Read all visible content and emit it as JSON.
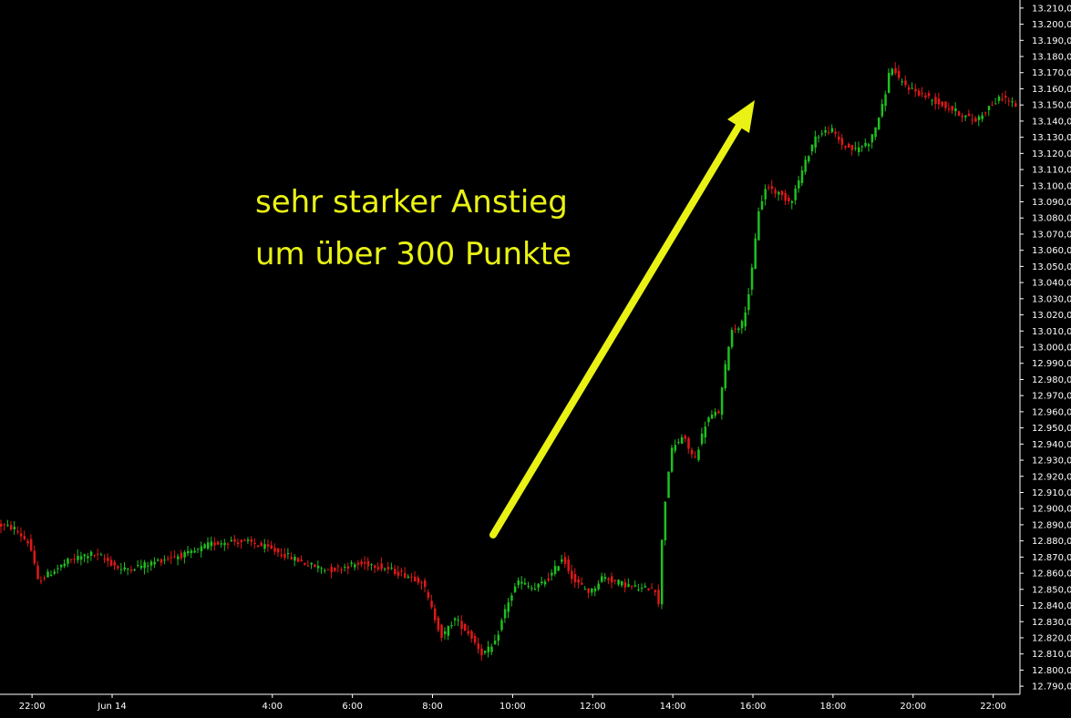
{
  "chart_data": {
    "type": "candlestick",
    "annotation": {
      "lines": [
        "sehr starker Anstieg",
        "um über 300 Punkte"
      ]
    },
    "colors": {
      "background": "#000000",
      "up": "#1fbf1f",
      "down": "#e01818",
      "axis": "#ffffff",
      "annotation": "#e9f214"
    },
    "x_axis": {
      "labels": [
        "22:00",
        "Jun 14",
        "4:00",
        "6:00",
        "8:00",
        "10:00",
        "12:00",
        "14:00",
        "16:00",
        "18:00",
        "20:00",
        "22:00"
      ],
      "hours": [
        -2,
        0,
        4,
        6,
        8,
        10,
        12,
        14,
        16,
        18,
        20,
        22
      ],
      "range_hours": [
        -2.8,
        22.6
      ]
    },
    "y_axis": {
      "ylim": [
        12785,
        13215
      ],
      "ticks": [
        "12.790,0",
        "12.800,0",
        "12.810,0",
        "12.820,0",
        "12.830,0",
        "12.840,0",
        "12.850,0",
        "12.860,0",
        "12.870,0",
        "12.880,0",
        "12.890,0",
        "12.900,0",
        "12.910,0",
        "12.920,0",
        "12.930,0",
        "12.940,0",
        "12.950,0",
        "12.960,0",
        "12.970,0",
        "12.980,0",
        "12.990,0",
        "13.000,0",
        "13.010,0",
        "13.020,0",
        "13.030,0",
        "13.040,0",
        "13.050,0",
        "13.060,0",
        "13.070,0",
        "13.080,0",
        "13.090,0",
        "13.100,0",
        "13.110,0",
        "13.120,0",
        "13.130,0",
        "13.140,0",
        "13.150,0",
        "13.160,0",
        "13.170,0",
        "13.180,0",
        "13.190,0",
        "13.200,0",
        "13.210,0"
      ],
      "tick_values": [
        12790,
        12800,
        12810,
        12820,
        12830,
        12840,
        12850,
        12860,
        12870,
        12880,
        12890,
        12900,
        12910,
        12920,
        12930,
        12940,
        12950,
        12960,
        12970,
        12980,
        12990,
        13000,
        13010,
        13020,
        13030,
        13040,
        13050,
        13060,
        13070,
        13080,
        13090,
        13100,
        13110,
        13120,
        13130,
        13140,
        13150,
        13160,
        13170,
        13180,
        13190,
        13200,
        13210
      ]
    },
    "price_path": {
      "hours": [
        -2.8,
        -2.4,
        -2.0,
        -1.8,
        -1.5,
        -1.0,
        -0.5,
        -0.2,
        0.3,
        1.0,
        1.5,
        2.0,
        2.5,
        3.0,
        3.5,
        4.0,
        4.5,
        5.0,
        5.5,
        6.0,
        6.5,
        7.0,
        7.5,
        7.8,
        8.0,
        8.3,
        8.6,
        9.0,
        9.3,
        9.6,
        9.9,
        10.2,
        10.6,
        11.0,
        11.3,
        11.6,
        12.0,
        12.3,
        12.6,
        13.0,
        13.3,
        13.6,
        13.7,
        13.8,
        14.0,
        14.3,
        14.6,
        14.9,
        15.2,
        15.5,
        15.8,
        16.0,
        16.2,
        16.4,
        16.7,
        17.0,
        17.3,
        17.6,
        18.0,
        18.3,
        18.6,
        19.0,
        19.3,
        19.5,
        19.7,
        20.0,
        20.4,
        20.8,
        21.2,
        21.6,
        22.0,
        22.3,
        22.6
      ],
      "prices": [
        12890,
        12888,
        12878,
        12855,
        12860,
        12868,
        12872,
        12870,
        12862,
        12866,
        12870,
        12872,
        12878,
        12880,
        12879,
        12875,
        12870,
        12865,
        12862,
        12865,
        12866,
        12862,
        12858,
        12855,
        12840,
        12820,
        12832,
        12822,
        12810,
        12815,
        12840,
        12855,
        12850,
        12858,
        12870,
        12855,
        12848,
        12858,
        12855,
        12852,
        12850,
        12852,
        12840,
        12890,
        12935,
        12945,
        12930,
        12955,
        12960,
        13010,
        13015,
        13040,
        13085,
        13100,
        13095,
        13090,
        13110,
        13130,
        13135,
        13125,
        13122,
        13128,
        13150,
        13175,
        13165,
        13160,
        13155,
        13150,
        13145,
        13140,
        13150,
        13155,
        13150
      ]
    }
  }
}
